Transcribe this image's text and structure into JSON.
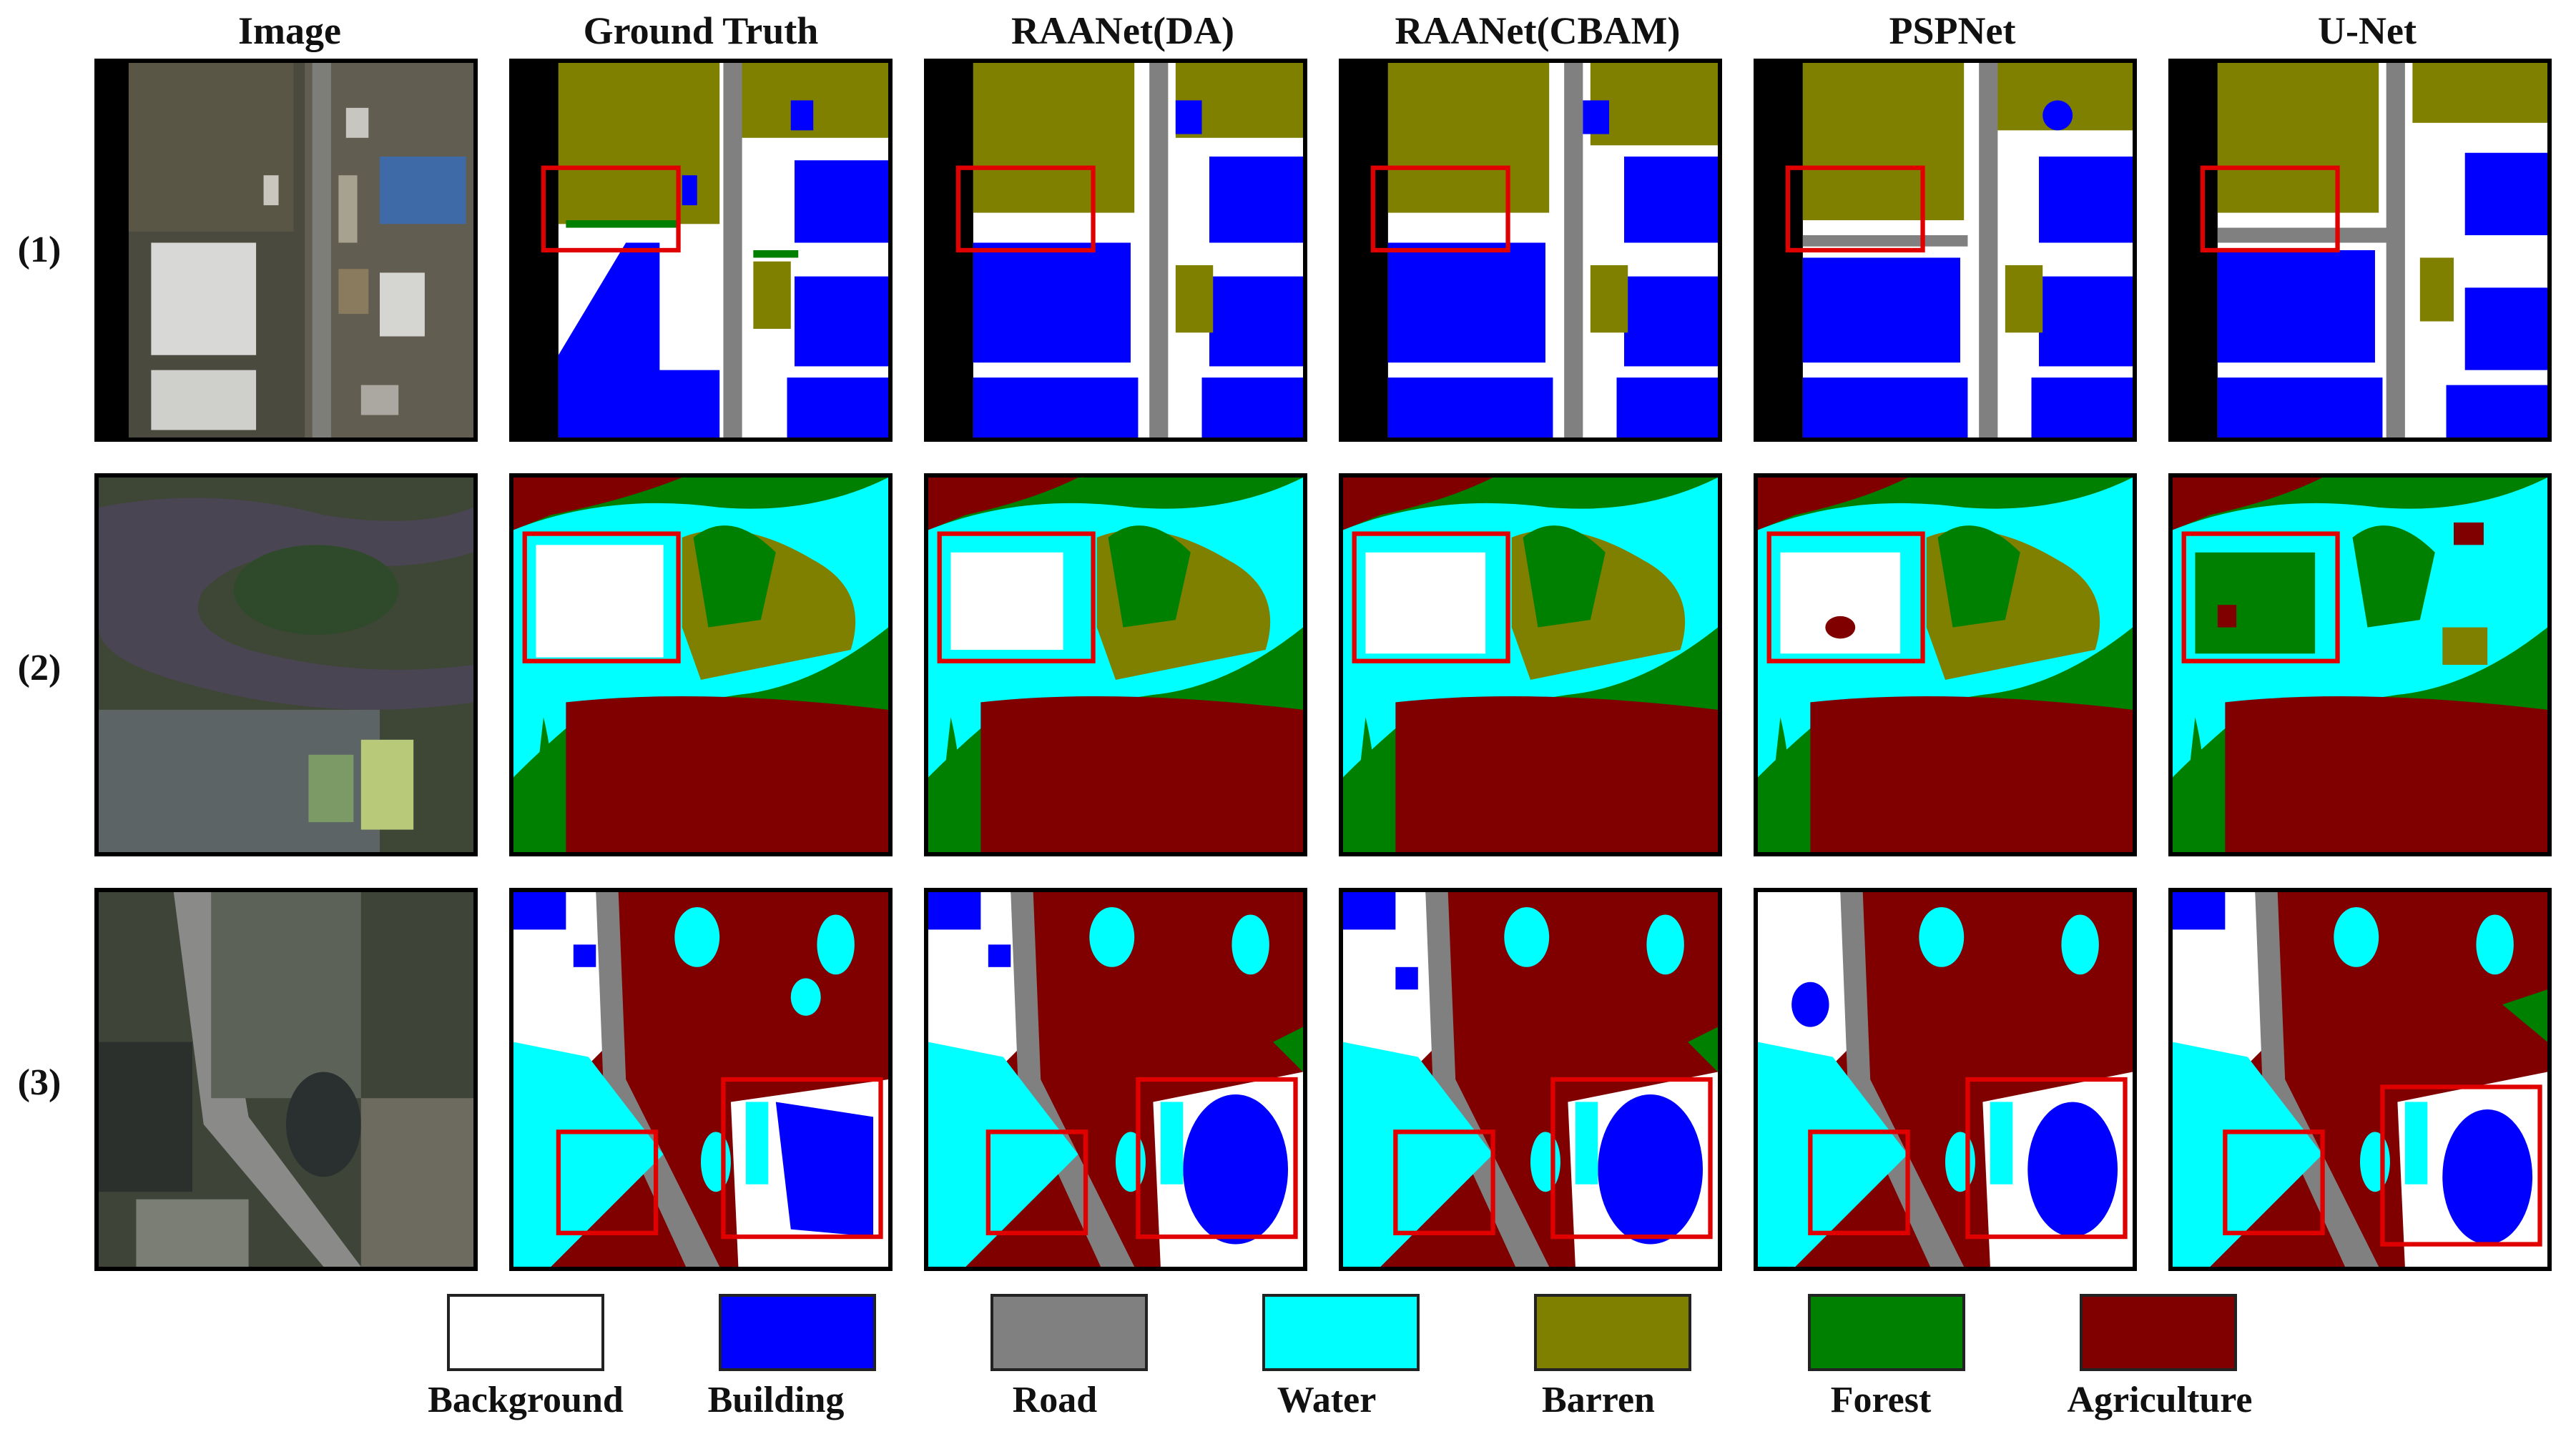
{
  "columns": [
    "Image",
    "Ground Truth",
    "RAANet(DA)",
    "RAANet(CBAM)",
    "PSPNet",
    "U-Net"
  ],
  "rows": [
    "(1)",
    "(2)",
    "(3)"
  ],
  "legend": [
    {
      "label": "Background",
      "color": "#ffffff"
    },
    {
      "label": "Building",
      "color": "#0000ff"
    },
    {
      "label": "Road",
      "color": "#808080"
    },
    {
      "label": "Water",
      "color": "#00ffff"
    },
    {
      "label": "Barren",
      "color": "#808000"
    },
    {
      "label": "Forest",
      "color": "#008000"
    },
    {
      "label": "Agriculture",
      "color": "#800000"
    }
  ],
  "colors": {
    "background": "#ffffff",
    "building": "#0000ff",
    "road": "#808080",
    "water": "#00ffff",
    "barren": "#808000",
    "forest": "#008000",
    "agriculture": "#800000",
    "highlight_box": "#e00000",
    "tile_border": "#000000"
  }
}
